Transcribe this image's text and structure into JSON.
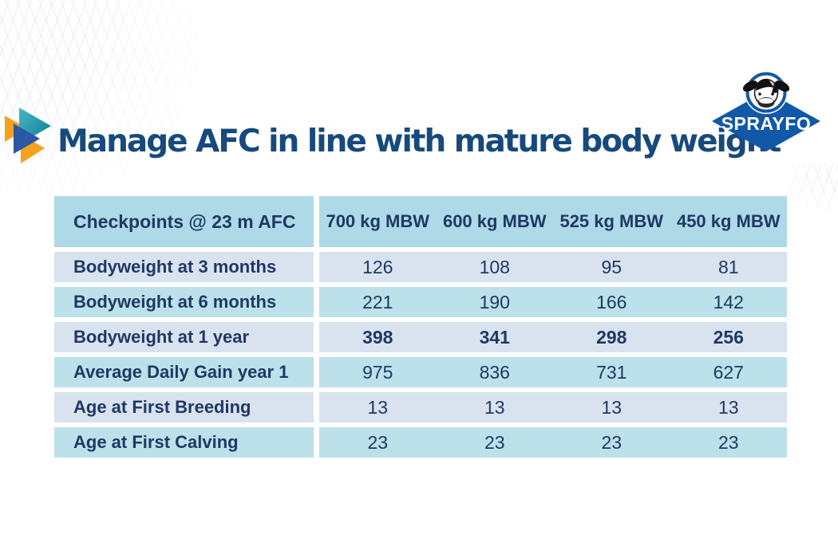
{
  "slide": {
    "title": "Manage AFC in line with mature body weight",
    "logo": {
      "brand": "SPRAYFO"
    },
    "table": {
      "header": {
        "label": "Checkpoints @ 23 m AFC",
        "columns": [
          "700 kg MBW",
          "600 kg MBW",
          "525 kg MBW",
          "450 kg MBW"
        ]
      },
      "rows": [
        {
          "label": "Bodyweight at 3 months",
          "values": [
            "126",
            "108",
            "95",
            "81"
          ],
          "bold": false
        },
        {
          "label": "Bodyweight at 6 months",
          "values": [
            "221",
            "190",
            "166",
            "142"
          ],
          "bold": false
        },
        {
          "label": "Bodyweight at 1 year",
          "values": [
            "398",
            "341",
            "298",
            "256"
          ],
          "bold": true
        },
        {
          "label": "Average Daily Gain year 1",
          "values": [
            "975",
            "836",
            "731",
            "627"
          ],
          "bold": false
        },
        {
          "label": "Age at First Breeding",
          "values": [
            "13",
            "13",
            "13",
            "13"
          ],
          "bold": false
        },
        {
          "label": "Age at First Calving",
          "values": [
            "23",
            "23",
            "23",
            "23"
          ],
          "bold": false
        }
      ]
    },
    "colors": {
      "title_navy": "#174A7C",
      "table_navy": "#1F3864",
      "header_cyan": "#AEDAE7",
      "row_cyan": "#BCE1EA",
      "row_periwinkle": "#D9E3F0",
      "logo_blue": "#1158A8",
      "triangle_teal": "#1E9AAC",
      "triangle_orange": "#F6A21D",
      "triangle_blue": "#2B57A5"
    }
  }
}
